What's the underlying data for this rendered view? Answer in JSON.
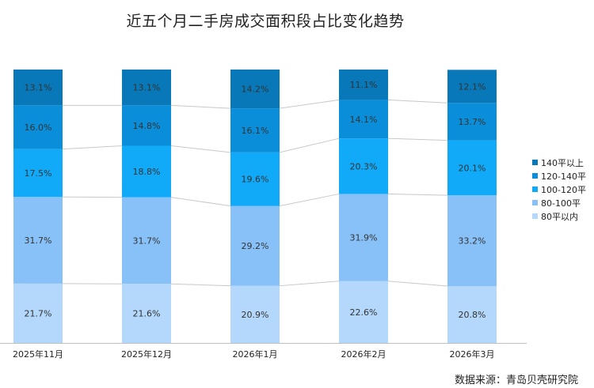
{
  "chart_data": {
    "type": "bar",
    "stacked": true,
    "title": "近五个月二手房成交面积段占比变化趋势",
    "source": "数据来源：青岛贝壳研究院",
    "categories": [
      "2025年11月",
      "2025年12月",
      "2026年1月",
      "2026年2月",
      "2026年3月"
    ],
    "ylim": [
      0,
      100
    ],
    "legend_position": "right",
    "grid": false,
    "series": [
      {
        "name": "80平以内",
        "color": "#b4d8fc",
        "values": [
          21.7,
          21.6,
          20.9,
          22.6,
          20.8
        ],
        "labels": [
          "21.7%",
          "21.6%",
          "20.9%",
          "22.6%",
          "20.8%"
        ]
      },
      {
        "name": "80-100平",
        "color": "#88c1f7",
        "values": [
          31.7,
          31.7,
          29.2,
          31.9,
          33.2
        ],
        "labels": [
          "31.7%",
          "31.7%",
          "29.2%",
          "31.9%",
          "33.2%"
        ]
      },
      {
        "name": "100-120平",
        "color": "#10aaf8",
        "values": [
          17.5,
          18.8,
          19.6,
          20.3,
          20.1
        ],
        "labels": [
          "17.5%",
          "18.8%",
          "19.6%",
          "20.3%",
          "20.1%"
        ]
      },
      {
        "name": "120-140平",
        "color": "#0a8ed9",
        "values": [
          16.0,
          14.8,
          16.1,
          14.1,
          13.7
        ],
        "labels": [
          "16.0%",
          "14.8%",
          "16.1%",
          "14.1%",
          "13.7%"
        ]
      },
      {
        "name": "140平以上",
        "color": "#0878b8",
        "values": [
          13.1,
          13.1,
          14.2,
          11.1,
          12.1
        ],
        "labels": [
          "13.1%",
          "13.1%",
          "14.2%",
          "11.1%",
          "12.1%"
        ]
      }
    ]
  }
}
